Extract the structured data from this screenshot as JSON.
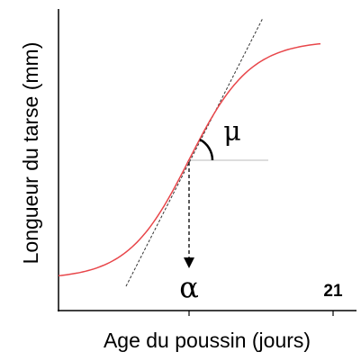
{
  "axes": {
    "y_label": "Longueur du tarse (mm)",
    "x_label": "Age du poussin (jours)",
    "x_end_label": "21"
  },
  "annotations": {
    "slope": "μ",
    "inflection": "α"
  }
}
